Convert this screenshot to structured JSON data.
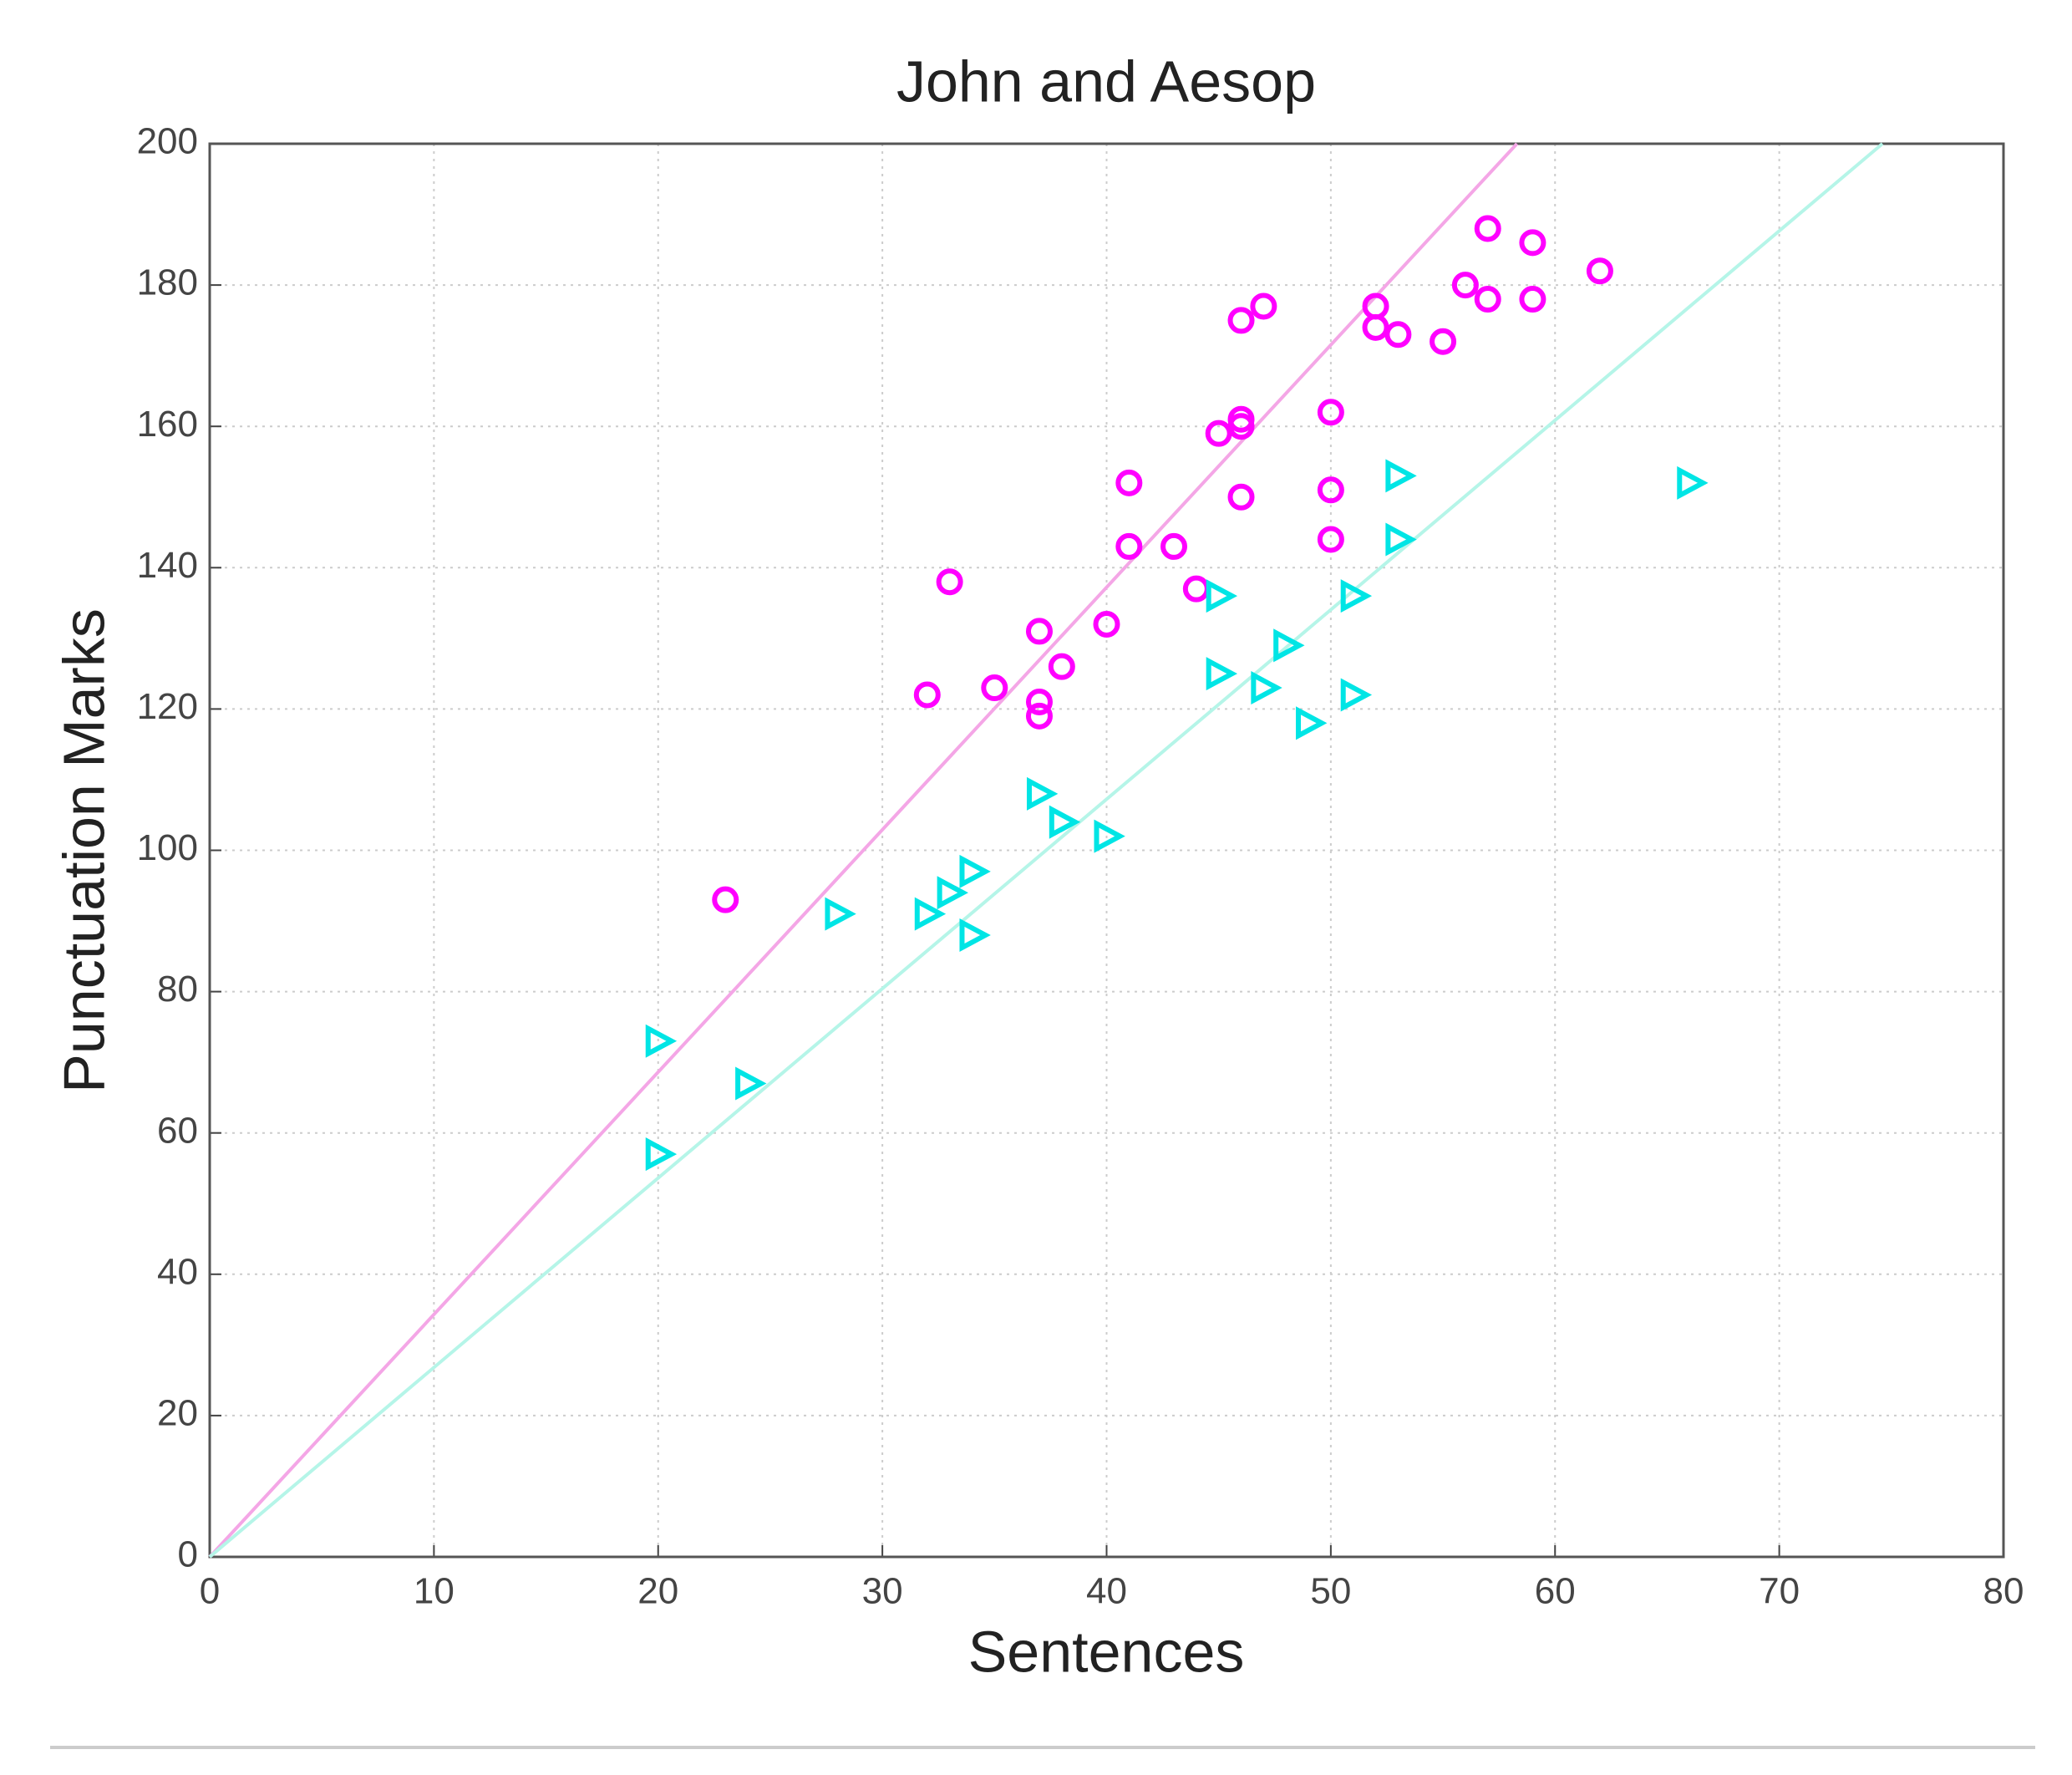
{
  "chart_data": {
    "type": "scatter",
    "title": "John and Aesop",
    "xlabel": "Sentences",
    "ylabel": "Punctuation Marks",
    "xlim": [
      0,
      80
    ],
    "xticks": [
      0,
      10,
      20,
      30,
      40,
      50,
      60,
      70,
      80
    ],
    "ylim": [
      0,
      200
    ],
    "yticks": [
      0,
      20,
      40,
      60,
      80,
      100,
      120,
      140,
      160,
      180,
      200
    ],
    "grid": true,
    "series": [
      {
        "color": "#ff00ff",
        "marker": "circle",
        "x": [
          23,
          32,
          33,
          35,
          37,
          37,
          37,
          38,
          40,
          41,
          41,
          43,
          44,
          45,
          46,
          46,
          46,
          46,
          47,
          50,
          50,
          50,
          52,
          52,
          53,
          55,
          56,
          57,
          57,
          59,
          59,
          62
        ],
        "values": [
          93,
          122,
          138,
          123,
          131,
          121,
          119,
          126,
          132,
          152,
          143,
          143,
          137,
          159,
          161,
          160,
          150,
          175,
          177,
          162,
          151,
          144,
          177,
          174,
          173,
          172,
          180,
          188,
          178,
          186,
          178,
          182
        ]
      },
      {
        "color": "#00e5e5",
        "marker": "triangle-right",
        "x": [
          20,
          20,
          24,
          28,
          32,
          33,
          34,
          34,
          37,
          38,
          40,
          45,
          45,
          47,
          48,
          49,
          51,
          51,
          53,
          53,
          66
        ],
        "values": [
          73,
          57,
          67,
          91,
          91,
          94,
          97,
          88,
          108,
          104,
          102,
          136,
          125,
          123,
          129,
          118,
          136,
          122,
          153,
          144,
          152
        ]
      }
    ],
    "lines": [
      {
        "color": "#f4a6e6",
        "x": [
          0,
          58.3
        ],
        "values": [
          0,
          200
        ]
      },
      {
        "color": "#b5f5e8",
        "x": [
          0,
          74.6
        ],
        "values": [
          0,
          200
        ]
      }
    ]
  }
}
